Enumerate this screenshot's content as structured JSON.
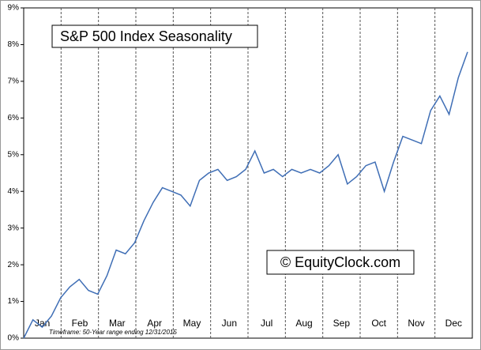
{
  "chart_data": {
    "type": "line",
    "title": "S&P 500 Index Seasonality",
    "annotations": [
      "© EquityClock.com",
      "Timeframe: 50-Year range ending 12/31/2015"
    ],
    "month_labels": [
      "Jan",
      "Feb",
      "Mar",
      "Apr",
      "May",
      "Jun",
      "Jul",
      "Aug",
      "Sep",
      "Oct",
      "Nov",
      "Dec"
    ],
    "series": [
      {
        "name": "S&P 500",
        "color": "#3f6eb5",
        "values": [
          0,
          0.5,
          0.3,
          0.6,
          1.1,
          1.4,
          1.6,
          1.3,
          1.2,
          1.7,
          2.4,
          2.3,
          2.6,
          3.2,
          3.7,
          4.1,
          4.0,
          3.9,
          3.6,
          4.3,
          4.5,
          4.6,
          4.3,
          4.4,
          4.6,
          5.1,
          4.5,
          4.6,
          4.4,
          4.6,
          4.5,
          4.6,
          4.5,
          4.7,
          5.0,
          4.2,
          4.4,
          4.7,
          4.8,
          4.0,
          4.8,
          5.5,
          5.4,
          5.3,
          6.2,
          6.6,
          6.1,
          7.1,
          7.8
        ]
      }
    ],
    "ylim": [
      0,
      9
    ],
    "yticks": [
      {
        "value": 0,
        "label": "0%"
      },
      {
        "value": 1,
        "label": "1%"
      },
      {
        "value": 2,
        "label": "2%"
      },
      {
        "value": 3,
        "label": "3%"
      },
      {
        "value": 4,
        "label": "4%"
      },
      {
        "value": 5,
        "label": "5%"
      },
      {
        "value": 6,
        "label": "6%"
      },
      {
        "value": 7,
        "label": "7%"
      },
      {
        "value": 8,
        "label": "8%"
      },
      {
        "value": 9,
        "label": "9%"
      }
    ]
  }
}
